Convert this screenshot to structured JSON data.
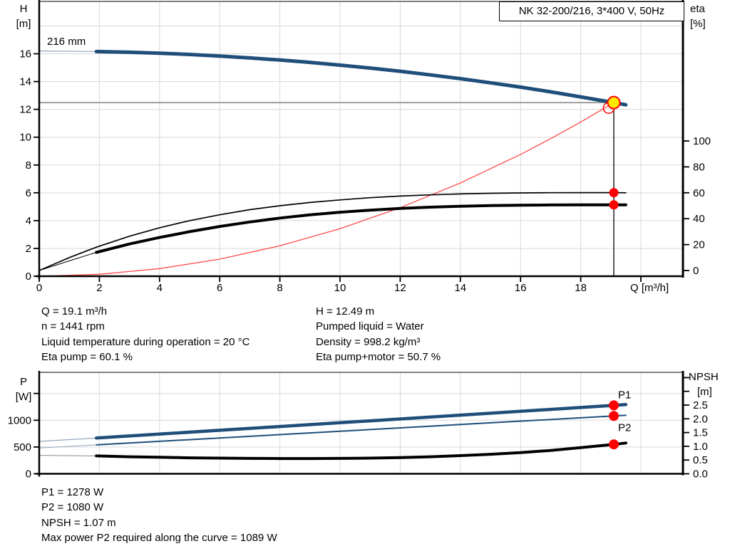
{
  "title_box": {
    "label": "NK 32-200/216, 3*400 V, 50Hz"
  },
  "info_top": {
    "left": [
      "Q = 19.1 m³/h",
      "n = 1441 rpm",
      "Liquid temperature during operation = 20 °C",
      "Eta pump = 60.1 %"
    ],
    "right": [
      "H = 12.49 m",
      "Pumped liquid = Water",
      "Density = 998.2 kg/m³",
      "Eta pump+motor = 50.7 %"
    ]
  },
  "info_bottom": [
    "P1 = 1278 W",
    "P2 = 1080 W",
    "NPSH = 1.07 m",
    "Max power P2 required along the curve = 1089 W"
  ],
  "colors": {
    "curve_blue": "#1F4E7A",
    "curve_black": "#000000",
    "affinity_red": "#FF4A4A",
    "marker_red": "#FF0000",
    "duty_yellow": "#FFE900",
    "grid": "#D9D9D9",
    "duty_line": "#9E9E9E",
    "ext_blue": "#93A5BE",
    "ext_black": "#8A8A8A",
    "axis": "#000000"
  },
  "chart_data": [
    {
      "type": "line",
      "name": "qh-eta-chart",
      "title": "NK 32-200/216, 3*400 V, 50Hz",
      "impeller_label": "216 mm",
      "xlabel": "Q [m³/h]",
      "ylabel_left": [
        "H",
        "[m]"
      ],
      "ylabel_right": [
        "eta",
        "[%]"
      ],
      "xlim": [
        0,
        21.4
      ],
      "ylim_left": [
        0,
        19.8
      ],
      "ylim_right": [
        0,
        110
      ],
      "x_ticks": [
        {
          "v": 0,
          "label": "0"
        },
        {
          "v": 2,
          "label": "2"
        },
        {
          "v": 4,
          "label": "4"
        },
        {
          "v": 6,
          "label": "6"
        },
        {
          "v": 8,
          "label": "8"
        },
        {
          "v": 10,
          "label": "10"
        },
        {
          "v": 12,
          "label": "12"
        },
        {
          "v": 14,
          "label": "14"
        },
        {
          "v": 16,
          "label": "16"
        },
        {
          "v": 18,
          "label": "18"
        },
        {
          "v": 20,
          "label": null
        }
      ],
      "y_ticks_left": [
        {
          "v": 0,
          "label": "0"
        },
        {
          "v": 2,
          "label": "2"
        },
        {
          "v": 4,
          "label": "4"
        },
        {
          "v": 6,
          "label": "6"
        },
        {
          "v": 8,
          "label": "8"
        },
        {
          "v": 10,
          "label": "10"
        },
        {
          "v": 12,
          "label": "12"
        },
        {
          "v": 14,
          "label": "14"
        },
        {
          "v": 16,
          "label": "16"
        }
      ],
      "y_ticks_right": [
        {
          "v": 0,
          "label": "0"
        },
        {
          "v": 20,
          "label": "20"
        },
        {
          "v": 40,
          "label": "40"
        },
        {
          "v": 60,
          "label": "60"
        },
        {
          "v": 80,
          "label": "80"
        },
        {
          "v": 100,
          "label": "100"
        }
      ],
      "x_gridlines": [
        2,
        4,
        6,
        8,
        10,
        12,
        14,
        16,
        18,
        20
      ],
      "y_gridlines": [
        2,
        4,
        6,
        8,
        10,
        12,
        14,
        16,
        18
      ],
      "duty_point": {
        "q": 19.1,
        "h": 12.49
      },
      "series": [
        {
          "id": "h-ext",
          "axis": "left",
          "color": "ext_blue",
          "width": 1.2,
          "points": [
            [
              0,
              16.2
            ],
            [
              1.9,
              16.16
            ]
          ]
        },
        {
          "id": "h-curve",
          "axis": "left",
          "color": "curve_blue",
          "width": 5,
          "points": [
            [
              1.9,
              16.16
            ],
            [
              3,
              16.11
            ],
            [
              4,
              16.04
            ],
            [
              5,
              15.95
            ],
            [
              6,
              15.83
            ],
            [
              7,
              15.7
            ],
            [
              8,
              15.55
            ],
            [
              9,
              15.38
            ],
            [
              10,
              15.18
            ],
            [
              11,
              14.97
            ],
            [
              12,
              14.74
            ],
            [
              13,
              14.48
            ],
            [
              14,
              14.21
            ],
            [
              15,
              13.91
            ],
            [
              16,
              13.6
            ],
            [
              17,
              13.26
            ],
            [
              18,
              12.9
            ],
            [
              19.1,
              12.49
            ],
            [
              19.5,
              12.33
            ]
          ]
        },
        {
          "id": "affinity-curve",
          "axis": "left",
          "color": "affinity_red",
          "width": 1.3,
          "points": [
            [
              0,
              0
            ],
            [
              2,
              0.14
            ],
            [
              4,
              0.55
            ],
            [
              6,
              1.23
            ],
            [
              8,
              2.19
            ],
            [
              10,
              3.42
            ],
            [
              12,
              4.93
            ],
            [
              14,
              6.71
            ],
            [
              16,
              8.76
            ],
            [
              17,
              9.89
            ],
            [
              18,
              11.09
            ],
            [
              19.05,
              12.42
            ]
          ]
        },
        {
          "id": "eta-pump-curve",
          "axis": "right",
          "color": "curve_black",
          "width": 1.7,
          "points": [
            [
              0,
              0
            ],
            [
              0.5,
              5
            ],
            [
              1,
              10
            ],
            [
              1.9,
              18
            ],
            [
              3,
              26.5
            ],
            [
              4,
              33
            ],
            [
              5,
              38.5
            ],
            [
              6,
              43
            ],
            [
              7,
              47
            ],
            [
              8,
              50
            ],
            [
              9,
              52.5
            ],
            [
              10,
              54.5
            ],
            [
              11,
              56.2
            ],
            [
              12,
              57.5
            ],
            [
              13,
              58.4
            ],
            [
              14,
              59.1
            ],
            [
              15,
              59.6
            ],
            [
              16,
              59.9
            ],
            [
              17,
              60.05
            ],
            [
              18,
              60.1
            ],
            [
              19.1,
              60.1
            ],
            [
              19.5,
              60
            ]
          ]
        },
        {
          "id": "eta-pump-motor-ext",
          "axis": "right",
          "color": "curve_black",
          "width": 1,
          "points": [
            [
              0,
              0
            ],
            [
              1,
              7.5
            ],
            [
              1.9,
              14
            ]
          ]
        },
        {
          "id": "eta-pump-motor-curve",
          "axis": "right",
          "color": "curve_black",
          "width": 4,
          "points": [
            [
              1.9,
              14
            ],
            [
              3,
              20.5
            ],
            [
              4,
              25.5
            ],
            [
              5,
              30
            ],
            [
              6,
              34
            ],
            [
              7,
              37.5
            ],
            [
              8,
              40.5
            ],
            [
              9,
              43
            ],
            [
              10,
              45
            ],
            [
              11,
              46.6
            ],
            [
              12,
              47.9
            ],
            [
              13,
              48.9
            ],
            [
              14,
              49.6
            ],
            [
              15,
              50.1
            ],
            [
              16,
              50.4
            ],
            [
              17,
              50.6
            ],
            [
              18,
              50.65
            ],
            [
              19.1,
              50.7
            ],
            [
              19.5,
              50.65
            ]
          ]
        }
      ],
      "markers": [
        {
          "name": "affinity-endpoint",
          "q": 18.93,
          "v": 12.1,
          "axis": "left",
          "style": "open-red"
        },
        {
          "name": "eta-pump-point",
          "q": 19.1,
          "v": 60.1,
          "axis": "right",
          "style": "red"
        },
        {
          "name": "eta-pump-motor-point",
          "q": 19.1,
          "v": 50.7,
          "axis": "right",
          "style": "red"
        },
        {
          "name": "duty-point",
          "q": 19.1,
          "v": 12.49,
          "axis": "left",
          "style": "duty"
        }
      ]
    },
    {
      "type": "line",
      "name": "power-npsh-chart",
      "xlabel": null,
      "ylabel_left": [
        "P",
        "[W]"
      ],
      "ylabel_right": [
        "NPSH",
        "[m]"
      ],
      "xlim": [
        0,
        21.4
      ],
      "ylim_left": [
        0,
        1895
      ],
      "ylim_right": [
        0,
        3.67
      ],
      "x_ticks": [],
      "y_ticks_left": [
        {
          "v": 0,
          "label": "0"
        },
        {
          "v": 500,
          "label": "500"
        },
        {
          "v": 1000,
          "label": "1000"
        },
        {
          "v": 1500,
          "label": null
        }
      ],
      "y_ticks_right": [
        {
          "v": 0,
          "label": "0.0"
        },
        {
          "v": 0.5,
          "label": "0.5"
        },
        {
          "v": 1,
          "label": "1.0"
        },
        {
          "v": 1.5,
          "label": "1.5"
        },
        {
          "v": 2,
          "label": "2.0"
        },
        {
          "v": 2.5,
          "label": "2.5"
        },
        {
          "v": 3,
          "label": null
        },
        {
          "v": 3.5,
          "label": null
        }
      ],
      "x_gridlines": [
        2,
        4,
        6,
        8,
        10,
        12,
        14,
        16,
        18,
        20
      ],
      "y_gridlines": [
        500,
        1000,
        1500
      ],
      "series": [
        {
          "id": "p1-ext",
          "axis": "left",
          "color": "ext_blue",
          "width": 1.2,
          "points": [
            [
              0,
              605
            ],
            [
              1.9,
              667
            ]
          ]
        },
        {
          "id": "p1-curve",
          "axis": "left",
          "color": "curve_blue",
          "width": 4.5,
          "points": [
            [
              1.9,
              667
            ],
            [
              6,
              812
            ],
            [
              10,
              954
            ],
            [
              14,
              1096
            ],
            [
              18,
              1238
            ],
            [
              19.1,
              1278
            ],
            [
              19.5,
              1292
            ]
          ]
        },
        {
          "id": "p2-ext",
          "axis": "left",
          "color": "ext_blue",
          "width": 1,
          "points": [
            [
              0,
              483
            ],
            [
              1.9,
              540
            ]
          ]
        },
        {
          "id": "p2-curve",
          "axis": "left",
          "color": "curve_blue",
          "width": 2,
          "points": [
            [
              1.9,
              540
            ],
            [
              6,
              669
            ],
            [
              10,
              794
            ],
            [
              14,
              920
            ],
            [
              18,
              1045
            ],
            [
              19.1,
              1080
            ],
            [
              19.5,
              1092
            ]
          ]
        },
        {
          "id": "npsh-ext",
          "axis": "right",
          "color": "ext_black",
          "width": 1,
          "points": [
            [
              0,
              0.67
            ],
            [
              1.9,
              0.65
            ]
          ]
        },
        {
          "id": "npsh-curve",
          "axis": "right",
          "color": "curve_black",
          "width": 4,
          "points": [
            [
              1.9,
              0.65
            ],
            [
              3,
              0.62
            ],
            [
              4,
              0.6
            ],
            [
              5,
              0.58
            ],
            [
              6,
              0.57
            ],
            [
              7,
              0.56
            ],
            [
              8,
              0.555
            ],
            [
              9,
              0.555
            ],
            [
              10,
              0.56
            ],
            [
              11,
              0.57
            ],
            [
              12,
              0.59
            ],
            [
              13,
              0.62
            ],
            [
              14,
              0.66
            ],
            [
              15,
              0.71
            ],
            [
              16,
              0.77
            ],
            [
              17,
              0.85
            ],
            [
              18,
              0.95
            ],
            [
              19.1,
              1.07
            ],
            [
              19.5,
              1.12
            ]
          ]
        }
      ],
      "markers": [
        {
          "name": "p1-point",
          "q": 19.1,
          "v": 1278,
          "axis": "left",
          "style": "red",
          "label": "P1",
          "label_pos": "above"
        },
        {
          "name": "p2-point",
          "q": 19.1,
          "v": 1080,
          "axis": "left",
          "style": "red",
          "label": "P2",
          "label_pos": "below"
        },
        {
          "name": "npsh-point",
          "q": 19.1,
          "v": 1.07,
          "axis": "right",
          "style": "red"
        }
      ]
    }
  ]
}
